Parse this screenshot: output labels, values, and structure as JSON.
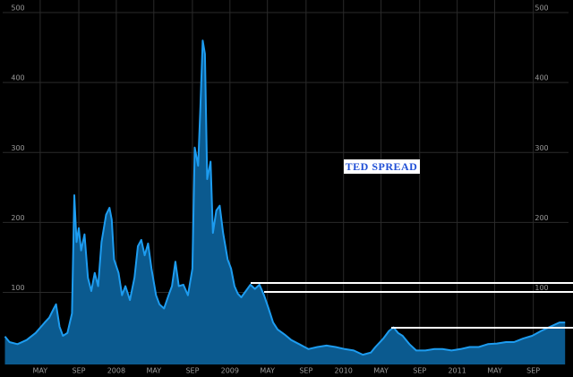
{
  "chart_data": {
    "type": "area",
    "title": "TED  SPREAD",
    "color": "#0b5a8f",
    "line_color": "#1d9cf0",
    "grid": true,
    "xlim": [
      2007.0,
      2011.98
    ],
    "ylim": [
      -3,
      518
    ],
    "yticks": [
      100,
      200,
      300,
      400,
      500
    ],
    "xticks": [
      {
        "value": 2007.33,
        "label": "MAY"
      },
      {
        "value": 2007.67,
        "label": "SEP"
      },
      {
        "value": 2008,
        "label": "2008"
      },
      {
        "value": 2008.33,
        "label": "MAY"
      },
      {
        "value": 2008.67,
        "label": "SEP"
      },
      {
        "value": 2009,
        "label": "2009"
      },
      {
        "value": 2009.33,
        "label": "MAY"
      },
      {
        "value": 2009.67,
        "label": "SEP"
      },
      {
        "value": 2010,
        "label": "2010"
      },
      {
        "value": 2010.33,
        "label": "MAY"
      },
      {
        "value": 2010.67,
        "label": "SEP"
      },
      {
        "value": 2011,
        "label": "2011"
      },
      {
        "value": 2011.33,
        "label": "MAY"
      },
      {
        "value": 2011.67,
        "label": "SEP"
      }
    ],
    "x": [
      2007.02,
      2007.06,
      2007.13,
      2007.21,
      2007.29,
      2007.37,
      2007.41,
      2007.45,
      2007.47,
      2007.5,
      2007.53,
      2007.57,
      2007.61,
      2007.63,
      2007.65,
      2007.67,
      2007.69,
      2007.72,
      2007.75,
      2007.78,
      2007.81,
      2007.84,
      2007.87,
      2007.91,
      2007.94,
      2007.96,
      2007.98,
      2008.02,
      2008.05,
      2008.08,
      2008.12,
      2008.16,
      2008.19,
      2008.22,
      2008.25,
      2008.28,
      2008.31,
      2008.35,
      2008.38,
      2008.42,
      2008.46,
      2008.49,
      2008.52,
      2008.55,
      2008.59,
      2008.63,
      2008.67,
      2008.69,
      2008.72,
      2008.74,
      2008.76,
      2008.78,
      2008.8,
      2008.83,
      2008.85,
      2008.88,
      2008.91,
      2008.94,
      2008.98,
      2009.01,
      2009.04,
      2009.07,
      2009.1,
      2009.14,
      2009.18,
      2009.22,
      2009.26,
      2009.3,
      2009.34,
      2009.38,
      2009.42,
      2009.48,
      2009.54,
      2009.61,
      2009.69,
      2009.77,
      2009.85,
      2009.93,
      2010.01,
      2010.09,
      2010.17,
      2010.24,
      2010.28,
      2010.35,
      2010.4,
      2010.44,
      2010.48,
      2010.52,
      2010.58,
      2010.64,
      2010.72,
      2010.8,
      2010.87,
      2010.95,
      2011.03,
      2011.11,
      2011.19,
      2011.27,
      2011.35,
      2011.43,
      2011.5,
      2011.58,
      2011.66,
      2011.74,
      2011.82,
      2011.9,
      2011.95
    ],
    "values": [
      37,
      29,
      26,
      32,
      42,
      57,
      64,
      77,
      83,
      51,
      38,
      42,
      70,
      239,
      172,
      192,
      160,
      183,
      121,
      102,
      128,
      109,
      172,
      211,
      221,
      204,
      147,
      128,
      96,
      109,
      89,
      121,
      166,
      175,
      153,
      170,
      134,
      96,
      83,
      77,
      96,
      109,
      144,
      109,
      111,
      96,
      134,
      307,
      281,
      364,
      460,
      441,
      262,
      287,
      185,
      217,
      224,
      185,
      147,
      134,
      109,
      98,
      93,
      102,
      111,
      105,
      111,
      96,
      77,
      57,
      47,
      40,
      32,
      26,
      19,
      22,
      24,
      22,
      19,
      17,
      11,
      14,
      22,
      34,
      45,
      50,
      42,
      38,
      26,
      17,
      17,
      19,
      19,
      17,
      19,
      22,
      22,
      26,
      27,
      29,
      29,
      34,
      38,
      45,
      51,
      57,
      57
    ]
  }
}
